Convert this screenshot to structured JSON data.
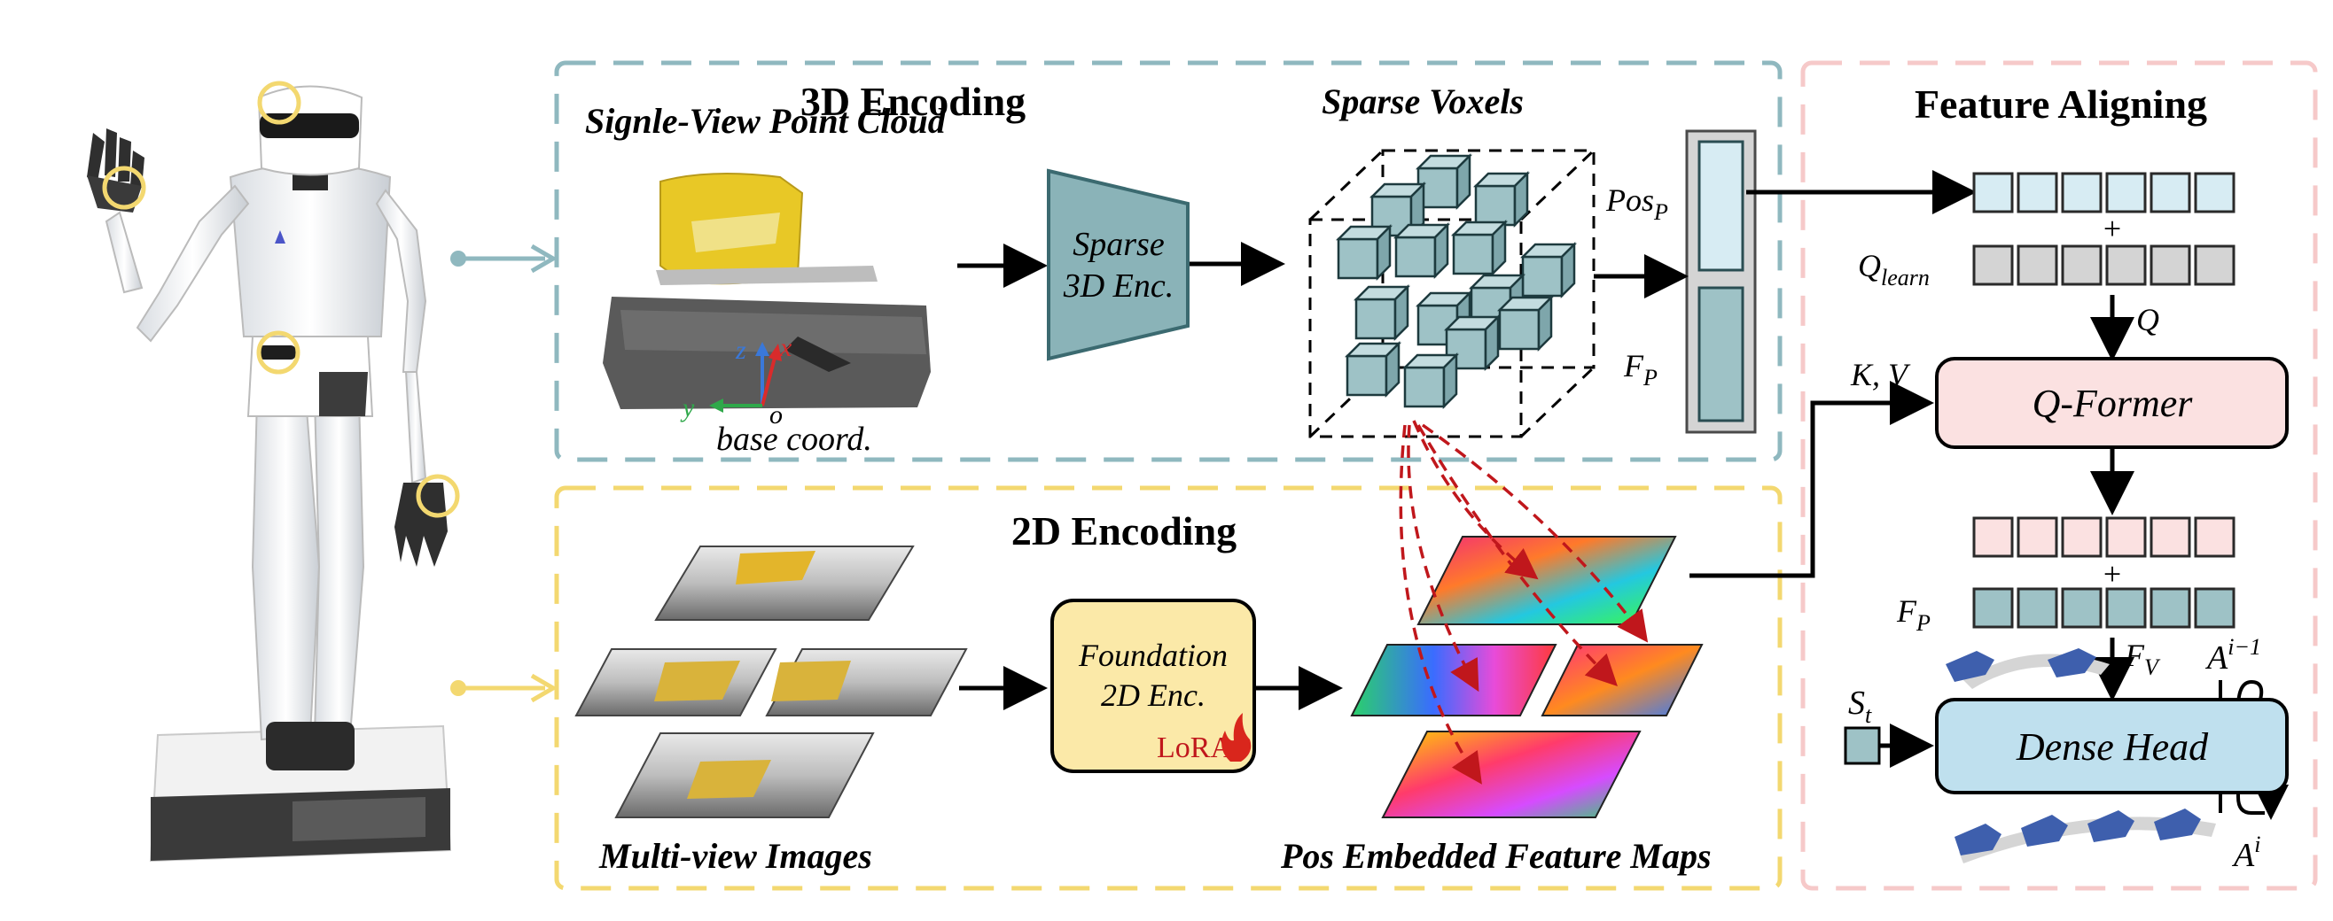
{
  "panels": {
    "enc3d": {
      "title": "3D Encoding"
    },
    "enc2d": {
      "title": "2D Encoding"
    },
    "align": {
      "title": "Feature Aligning"
    }
  },
  "labels": {
    "point_cloud": "Signle-View Point Cloud",
    "sparse_voxels": "Sparse Voxels",
    "multi_view": "Multi-view Images",
    "feature_maps": "Pos Embedded Feature Maps",
    "base_coord": "base coord.",
    "axis_z": "z",
    "axis_x": "x",
    "axis_y": "y",
    "axis_o": "o"
  },
  "blocks": {
    "sparse_enc_line1": "Sparse",
    "sparse_enc_line2": "3D Enc.",
    "foundation_line1": "Foundation",
    "foundation_line2": "2D Enc.",
    "lora": "LoRA",
    "qformer": "Q-Former",
    "dense_head": "Dense Head"
  },
  "math": {
    "pos": "Pos",
    "pos_sub": "P",
    "fp": "F",
    "fp_sub": "P",
    "qlearn": "Q",
    "qlearn_sub": "learn",
    "q": "Q",
    "kv": "K, V",
    "fp2": "F",
    "fp2_sub": "P",
    "fv": "F",
    "fv_sub": "V",
    "a_prev": "A",
    "a_prev_sup": "i−1",
    "st": "S",
    "st_sub": "t",
    "a_cur": "A",
    "a_cur_sup": "i",
    "plus": "+"
  },
  "colors": {
    "teal": "#8fb8bf",
    "teal_fill": "#9ec2c6",
    "light_blue": "#d7ecf3",
    "gray": "#d4d4d4",
    "pink": "#fbe1e1",
    "dense_blue": "#bfe0ee",
    "yellow": "#fbe9a8",
    "red_dash": "#c0171c",
    "lora_red": "#c0171c"
  }
}
